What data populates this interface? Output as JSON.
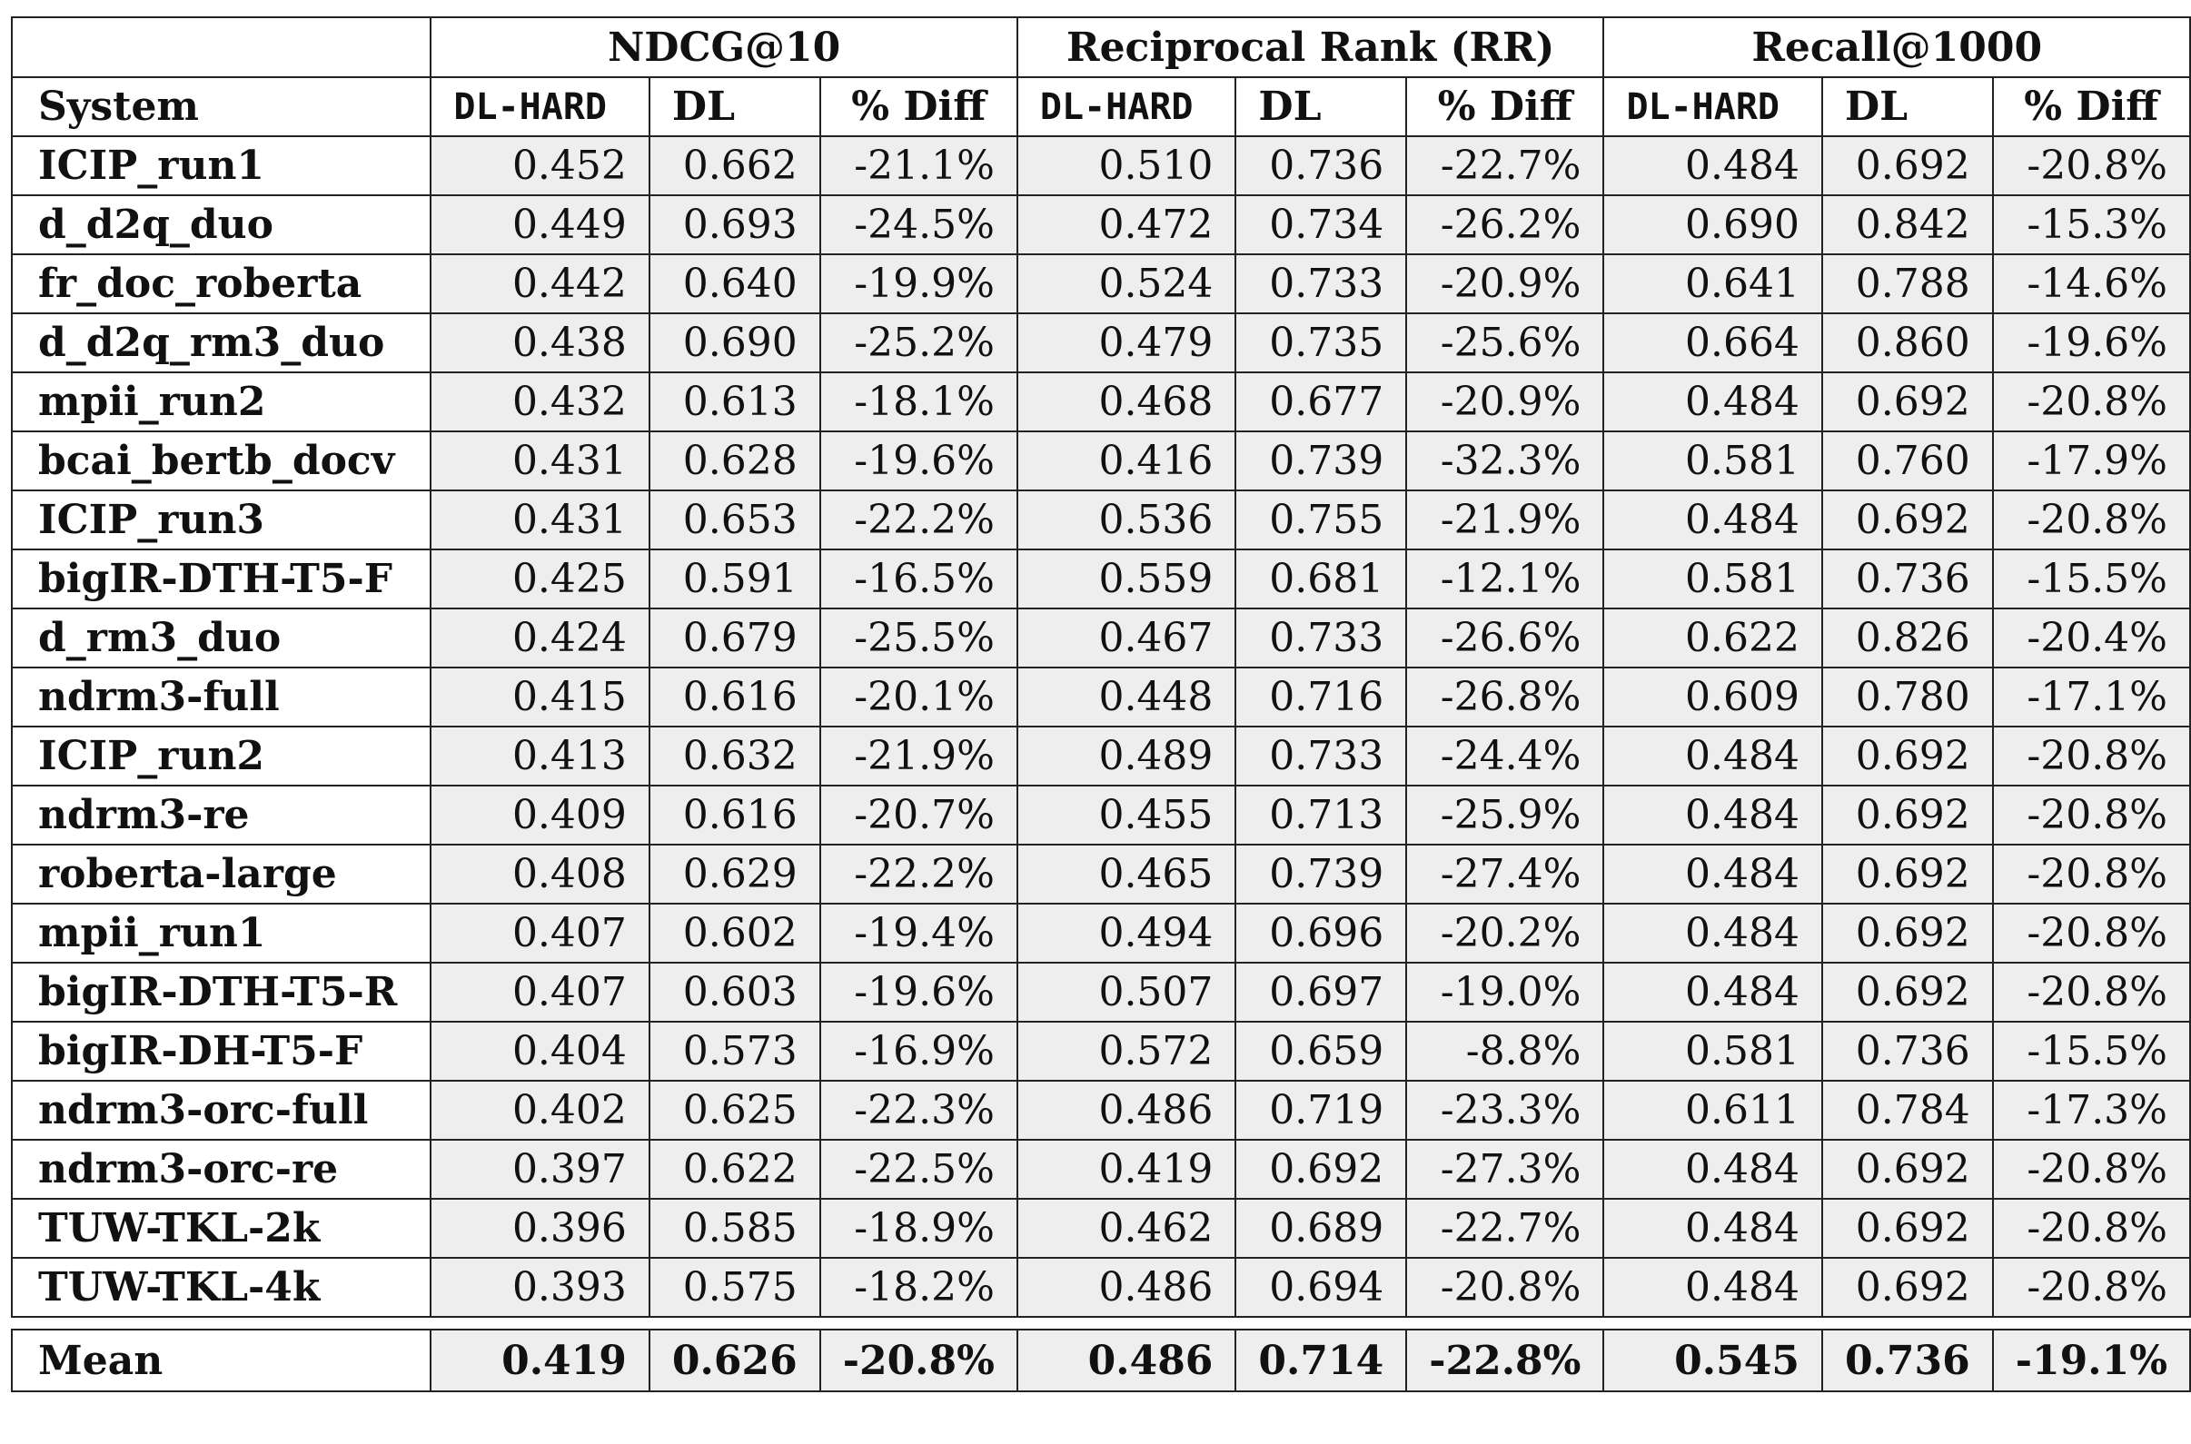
{
  "header": {
    "groups": [
      "NDCG@10",
      "Reciprocal Rank (RR)",
      "Recall@1000"
    ],
    "system_label": "System",
    "sub_labels": [
      "DL-HARD",
      "DL",
      "% Diff"
    ]
  },
  "rows": [
    {
      "system": "ICIP_run1",
      "v": [
        "0.452",
        "0.662",
        "-21.1%",
        "0.510",
        "0.736",
        "-22.7%",
        "0.484",
        "0.692",
        "-20.8%"
      ]
    },
    {
      "system": "d_d2q_duo",
      "v": [
        "0.449",
        "0.693",
        "-24.5%",
        "0.472",
        "0.734",
        "-26.2%",
        "0.690",
        "0.842",
        "-15.3%"
      ]
    },
    {
      "system": "fr_doc_roberta",
      "v": [
        "0.442",
        "0.640",
        "-19.9%",
        "0.524",
        "0.733",
        "-20.9%",
        "0.641",
        "0.788",
        "-14.6%"
      ]
    },
    {
      "system": "d_d2q_rm3_duo",
      "v": [
        "0.438",
        "0.690",
        "-25.2%",
        "0.479",
        "0.735",
        "-25.6%",
        "0.664",
        "0.860",
        "-19.6%"
      ]
    },
    {
      "system": "mpii_run2",
      "v": [
        "0.432",
        "0.613",
        "-18.1%",
        "0.468",
        "0.677",
        "-20.9%",
        "0.484",
        "0.692",
        "-20.8%"
      ]
    },
    {
      "system": "bcai_bertb_docv",
      "v": [
        "0.431",
        "0.628",
        "-19.6%",
        "0.416",
        "0.739",
        "-32.3%",
        "0.581",
        "0.760",
        "-17.9%"
      ]
    },
    {
      "system": "ICIP_run3",
      "v": [
        "0.431",
        "0.653",
        "-22.2%",
        "0.536",
        "0.755",
        "-21.9%",
        "0.484",
        "0.692",
        "-20.8%"
      ]
    },
    {
      "system": "bigIR-DTH-T5-F",
      "v": [
        "0.425",
        "0.591",
        "-16.5%",
        "0.559",
        "0.681",
        "-12.1%",
        "0.581",
        "0.736",
        "-15.5%"
      ]
    },
    {
      "system": "d_rm3_duo",
      "v": [
        "0.424",
        "0.679",
        "-25.5%",
        "0.467",
        "0.733",
        "-26.6%",
        "0.622",
        "0.826",
        "-20.4%"
      ]
    },
    {
      "system": "ndrm3-full",
      "v": [
        "0.415",
        "0.616",
        "-20.1%",
        "0.448",
        "0.716",
        "-26.8%",
        "0.609",
        "0.780",
        "-17.1%"
      ]
    },
    {
      "system": "ICIP_run2",
      "v": [
        "0.413",
        "0.632",
        "-21.9%",
        "0.489",
        "0.733",
        "-24.4%",
        "0.484",
        "0.692",
        "-20.8%"
      ]
    },
    {
      "system": "ndrm3-re",
      "v": [
        "0.409",
        "0.616",
        "-20.7%",
        "0.455",
        "0.713",
        "-25.9%",
        "0.484",
        "0.692",
        "-20.8%"
      ]
    },
    {
      "system": "roberta-large",
      "v": [
        "0.408",
        "0.629",
        "-22.2%",
        "0.465",
        "0.739",
        "-27.4%",
        "0.484",
        "0.692",
        "-20.8%"
      ]
    },
    {
      "system": "mpii_run1",
      "v": [
        "0.407",
        "0.602",
        "-19.4%",
        "0.494",
        "0.696",
        "-20.2%",
        "0.484",
        "0.692",
        "-20.8%"
      ]
    },
    {
      "system": "bigIR-DTH-T5-R",
      "v": [
        "0.407",
        "0.603",
        "-19.6%",
        "0.507",
        "0.697",
        "-19.0%",
        "0.484",
        "0.692",
        "-20.8%"
      ]
    },
    {
      "system": "bigIR-DH-T5-F",
      "v": [
        "0.404",
        "0.573",
        "-16.9%",
        "0.572",
        "0.659",
        "-8.8%",
        "0.581",
        "0.736",
        "-15.5%"
      ]
    },
    {
      "system": "ndrm3-orc-full",
      "v": [
        "0.402",
        "0.625",
        "-22.3%",
        "0.486",
        "0.719",
        "-23.3%",
        "0.611",
        "0.784",
        "-17.3%"
      ]
    },
    {
      "system": "ndrm3-orc-re",
      "v": [
        "0.397",
        "0.622",
        "-22.5%",
        "0.419",
        "0.692",
        "-27.3%",
        "0.484",
        "0.692",
        "-20.8%"
      ]
    },
    {
      "system": "TUW-TKL-2k",
      "v": [
        "0.396",
        "0.585",
        "-18.9%",
        "0.462",
        "0.689",
        "-22.7%",
        "0.484",
        "0.692",
        "-20.8%"
      ]
    },
    {
      "system": "TUW-TKL-4k",
      "v": [
        "0.393",
        "0.575",
        "-18.2%",
        "0.486",
        "0.694",
        "-20.8%",
        "0.484",
        "0.692",
        "-20.8%"
      ]
    }
  ],
  "mean": {
    "system": "Mean",
    "v": [
      "0.419",
      "0.626",
      "-20.8%",
      "0.486",
      "0.714",
      "-22.8%",
      "0.545",
      "0.736",
      "-19.1%"
    ]
  }
}
